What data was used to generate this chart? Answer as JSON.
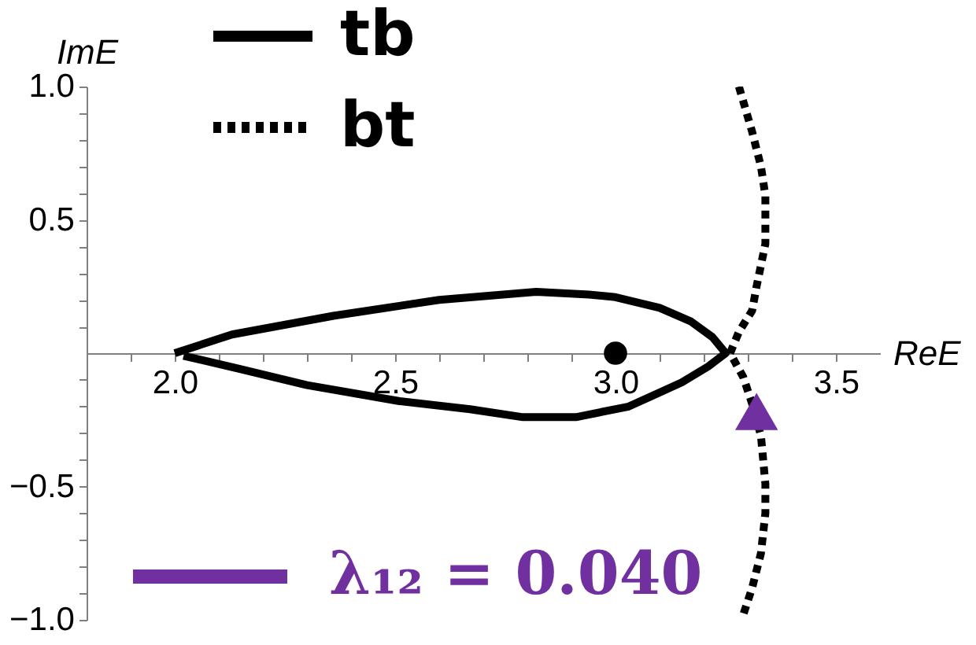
{
  "chart_data": {
    "type": "line",
    "xlabel": "ReE",
    "ylabel": "ImE",
    "xlim": [
      1.8,
      3.6
    ],
    "ylim": [
      -1.0,
      1.0
    ],
    "xticks": [
      {
        "value": 1.9,
        "label": null
      },
      {
        "value": 2.0,
        "label": "2.0"
      },
      {
        "value": 2.1,
        "label": null
      },
      {
        "value": 2.2,
        "label": null
      },
      {
        "value": 2.3,
        "label": null
      },
      {
        "value": 2.4,
        "label": null
      },
      2.5,
      {
        "value": 2.6,
        "label": null
      },
      {
        "value": 2.7,
        "label": null
      },
      {
        "value": 2.8,
        "label": null
      },
      {
        "value": 2.9,
        "label": null
      },
      {
        "value": 3.0,
        "label": "3.0"
      },
      {
        "value": 3.1,
        "label": null
      },
      {
        "value": 3.2,
        "label": null
      },
      {
        "value": 3.3,
        "label": null
      },
      {
        "value": 3.4,
        "label": null
      },
      3.5
    ],
    "yticks": [
      {
        "value": -1.0,
        "label": "−1.0"
      },
      {
        "value": -0.9,
        "label": null
      },
      {
        "value": -0.8,
        "label": null
      },
      {
        "value": -0.7,
        "label": null
      },
      {
        "value": -0.6,
        "label": null
      },
      {
        "value": -0.5,
        "label": "−0.5"
      },
      {
        "value": -0.4,
        "label": null
      },
      {
        "value": -0.3,
        "label": null
      },
      {
        "value": -0.2,
        "label": null
      },
      {
        "value": -0.1,
        "label": null
      },
      {
        "value": 0.1,
        "label": null
      },
      {
        "value": 0.2,
        "label": null
      },
      {
        "value": 0.3,
        "label": null
      },
      {
        "value": 0.4,
        "label": null
      },
      0.5,
      {
        "value": 0.6,
        "label": null
      },
      {
        "value": 0.7,
        "label": null
      },
      {
        "value": 0.8,
        "label": null
      },
      {
        "value": 0.9,
        "label": null
      },
      {
        "value": 1.0,
        "label": "1.0"
      }
    ],
    "legend": "top left",
    "series": [
      {
        "name": "tb",
        "color": "#000000",
        "line_style": "solid",
        "x": [
          2.0,
          2.13,
          2.36,
          2.6,
          2.82,
          2.94,
          3.0,
          3.1,
          3.17,
          3.22,
          3.25,
          3.21,
          3.15,
          3.03,
          2.91,
          2.79,
          2.67,
          2.51,
          2.3,
          2.15,
          2.02
        ],
        "values": [
          0,
          0.07,
          0.14,
          0.2,
          0.23,
          0.22,
          0.21,
          0.17,
          0.12,
          0.06,
          0,
          -0.05,
          -0.11,
          -0.2,
          -0.24,
          -0.24,
          -0.21,
          -0.18,
          -0.12,
          -0.06,
          -0.01
        ]
      },
      {
        "name": "bt",
        "color": "#000000",
        "line_style": "dotted",
        "x": [
          3.28,
          3.31,
          3.33,
          3.34,
          3.34,
          3.33,
          3.32,
          3.31,
          3.28,
          3.26,
          3.29,
          3.31,
          3.33,
          3.34,
          3.34,
          3.33,
          3.31,
          3.29
        ],
        "values": [
          1.0,
          0.83,
          0.7,
          0.59,
          0.41,
          0.33,
          0.25,
          0.16,
          0.08,
          0,
          -0.09,
          -0.19,
          -0.31,
          -0.49,
          -0.6,
          -0.75,
          -0.88,
          -0.98
        ]
      },
      {
        "type": "scatter",
        "color": "#000000",
        "marker": "circle",
        "x": [
          3.0
        ],
        "values": [
          0
        ]
      },
      {
        "name": "λ₁₂ = 0.040",
        "type": "scatter",
        "color": "#7030a0",
        "marker": "triangle",
        "x": [
          3.32
        ],
        "values": [
          -0.22
        ]
      }
    ]
  }
}
